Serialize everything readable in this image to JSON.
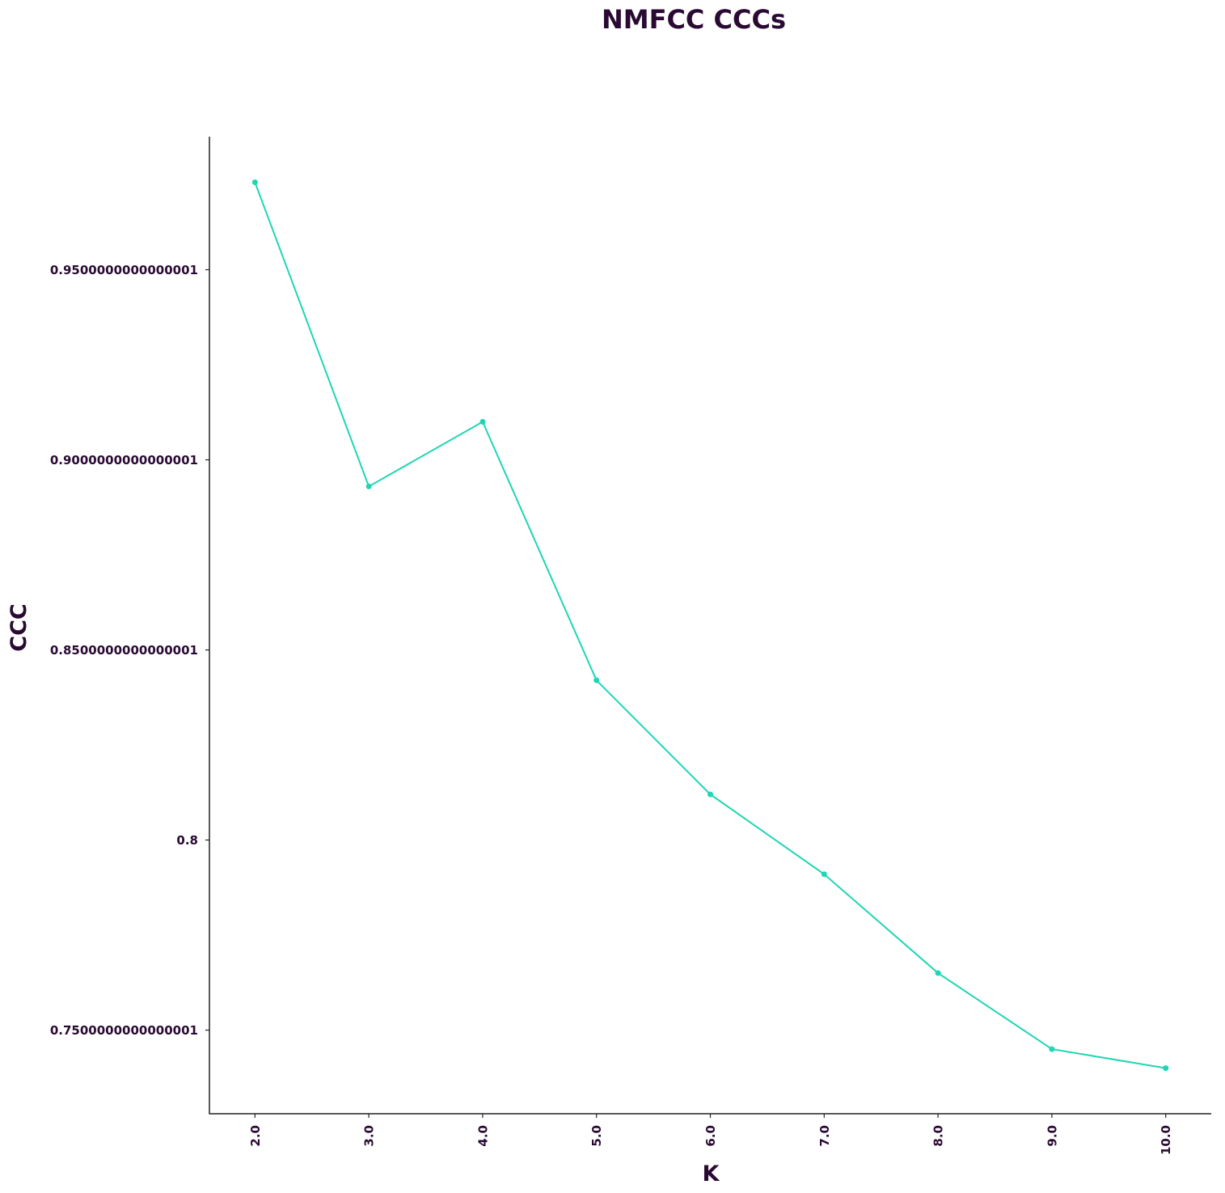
{
  "chart_data": {
    "type": "line",
    "title": "NMFCC CCCs",
    "xlabel": "K",
    "ylabel": "CCC",
    "x": [
      2.0,
      3.0,
      4.0,
      5.0,
      6.0,
      7.0,
      8.0,
      9.0,
      10.0
    ],
    "x_tick_labels": [
      "2.0",
      "3.0",
      "4.0",
      "5.0",
      "6.0",
      "7.0",
      "8.0",
      "9.0",
      "10.0"
    ],
    "series": [
      {
        "values": [
          0.973,
          0.893,
          0.91,
          0.842,
          0.812,
          0.791,
          0.765,
          0.745,
          0.74
        ]
      }
    ],
    "y_ticks": [
      0.7500000000000001,
      0.8,
      0.8500000000000001,
      0.9000000000000001,
      0.9500000000000001
    ],
    "y_tick_labels": [
      "0.7500000000000001",
      "0.8",
      "0.8500000000000001",
      "0.9000000000000001",
      "0.9500000000000001"
    ],
    "xlim": [
      1.6,
      10.4
    ],
    "ylim": [
      0.728,
      0.985
    ],
    "grid": false,
    "legend": "none",
    "line_color": "#1fd6b4",
    "text_color": "#2a0a33"
  }
}
